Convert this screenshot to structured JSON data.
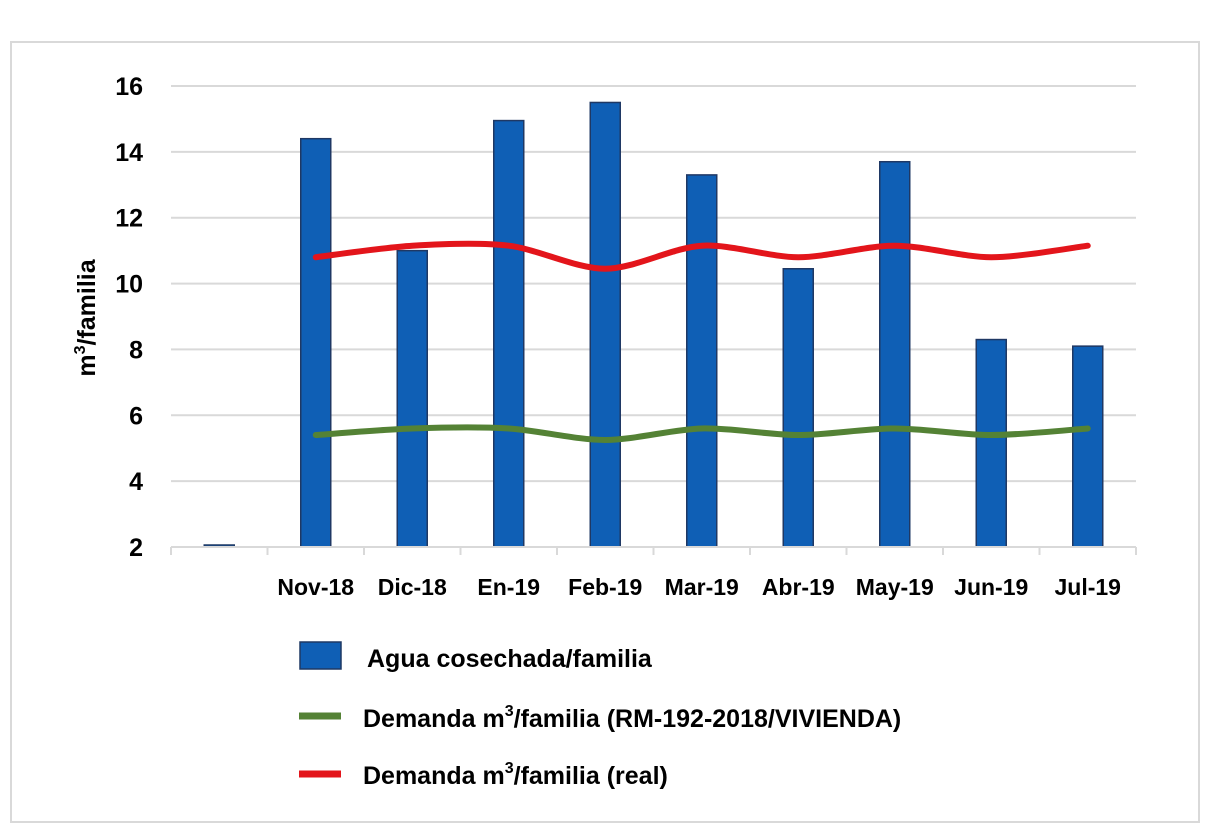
{
  "chart_data": {
    "type": "bar",
    "categories": [
      "",
      "Nov-18",
      "Dic-18",
      "En-19",
      "Feb-19",
      "Mar-19",
      "Abr-19",
      "May-19",
      "Jun-19",
      "Jul-19"
    ],
    "ylabel_main": "m",
    "ylabel_sup": "3",
    "ylabel_rest": "/familia",
    "ylim": [
      2,
      16
    ],
    "yticks": [
      2,
      4,
      6,
      8,
      10,
      12,
      14,
      16
    ],
    "grid": true,
    "legend_position": "bottom",
    "series": [
      {
        "name": "Agua cosechada/familia",
        "kind": "bar",
        "color": "#0f5fb5",
        "values": [
          2,
          14.4,
          11.0,
          14.95,
          15.5,
          13.3,
          10.45,
          13.7,
          8.3,
          8.1
        ]
      },
      {
        "name": "Demanda m3/familia (RM-192-2018/VIVIENDA)",
        "kind": "line",
        "color": "#548235",
        "values": [
          null,
          5.4,
          5.6,
          5.6,
          5.25,
          5.6,
          5.4,
          5.6,
          5.4,
          5.6
        ]
      },
      {
        "name": "Demanda m3/familia (real)",
        "kind": "line",
        "color": "#e3151b",
        "values": [
          null,
          10.8,
          11.15,
          11.15,
          10.45,
          11.15,
          10.8,
          11.15,
          10.8,
          11.15
        ]
      }
    ],
    "legend": [
      {
        "pre": "Agua cosechada/familia",
        "sup": "",
        "post": ""
      },
      {
        "pre": "Demanda m",
        "sup": "3",
        "post": "/familia (RM-192-2018/VIVIENDA)"
      },
      {
        "pre": "Demanda m",
        "sup": "3",
        "post": "/familia (real)"
      }
    ]
  }
}
